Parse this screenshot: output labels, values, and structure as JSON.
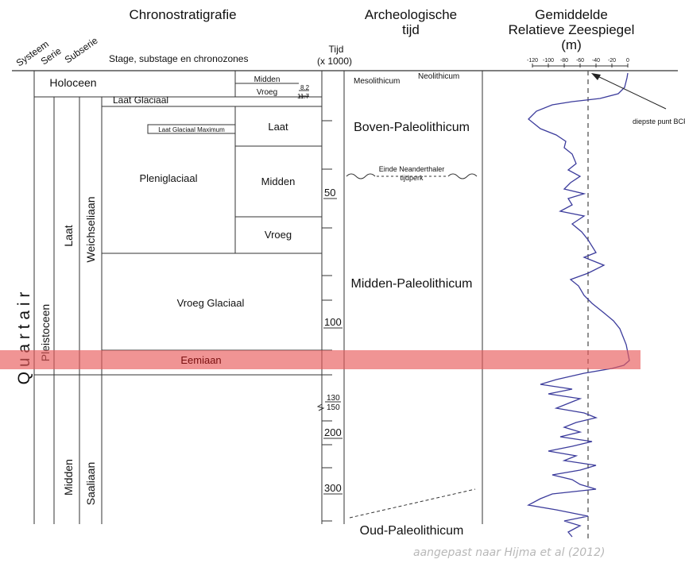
{
  "headers": {
    "chronostrat": "Chronostratigrafie",
    "arch_line1": "Archeologische",
    "arch_line2": "tijd",
    "sea_line1": "Gemiddelde",
    "sea_line2": "Relatieve Zeespiegel",
    "sea_line3": "(m)",
    "systeem": "Systeem",
    "serie": "Serie",
    "subserie": "Subserie",
    "stage": "Stage, substage en chronozones",
    "tijd_line1": "Tijd",
    "tijd_line2": "(x 1000)"
  },
  "strat": {
    "quartair": "Q u a r t a i r",
    "pleistoceen": "Pleistoceen",
    "holoceen": "Holoceen",
    "laat": "Laat",
    "midden": "Midden",
    "weichseliaan": "Weichseliaan",
    "saaliaan": "Saaliaan",
    "laat_glaciaal": "Laat Glaciaal",
    "lgm": "Laat Glaciaal Maximum",
    "pleniglaciaal": "Pleniglaciaal",
    "vroeg_glaciaal": "Vroeg Glaciaal",
    "eemiaan": "Eemiaan",
    "holo_midden": "Midden",
    "holo_vroeg": "Vroeg",
    "pleni_laat": "Laat",
    "pleni_midden": "Midden",
    "pleni_vroeg": "Vroeg"
  },
  "time_labels": {
    "t8_2": "8.2",
    "t11_7": "11.7",
    "t50": "50",
    "t100": "100",
    "t130": "130",
    "t150": "150",
    "t200": "200",
    "t300": "300"
  },
  "arch": {
    "mesolithicum": "Mesolithicum",
    "neolithicum": "Neolithicum",
    "boven": "Boven-Paleolithicum",
    "einde_line1": "Einde Neanderthaler",
    "einde_line2": "tijdperk",
    "midden": "Midden-Paleolithicum",
    "oud": "Oud-Paleolithicum"
  },
  "sea": {
    "ticks": [
      "-120",
      "-100",
      "-80",
      "-60",
      "-40",
      "-20",
      "0"
    ],
    "annotation": "diepste punt BCP",
    "curve_color": "#3c3c9c",
    "dashed_level": -50,
    "curve": [
      [
        0,
        92
      ],
      [
        -1,
        98
      ],
      [
        -4,
        110
      ],
      [
        -12,
        118
      ],
      [
        -35,
        124
      ],
      [
        -70,
        128
      ],
      [
        -95,
        132
      ],
      [
        -115,
        140
      ],
      [
        -125,
        150
      ],
      [
        -110,
        162
      ],
      [
        -90,
        170
      ],
      [
        -78,
        178
      ],
      [
        -80,
        186
      ],
      [
        -70,
        194
      ],
      [
        -65,
        206
      ],
      [
        -75,
        214
      ],
      [
        -60,
        222
      ],
      [
        -72,
        230
      ],
      [
        -80,
        238
      ],
      [
        -55,
        244
      ],
      [
        -75,
        250
      ],
      [
        -70,
        258
      ],
      [
        -85,
        266
      ],
      [
        -55,
        272
      ],
      [
        -70,
        282
      ],
      [
        -58,
        292
      ],
      [
        -50,
        302
      ],
      [
        -40,
        318
      ],
      [
        -55,
        324
      ],
      [
        -30,
        334
      ],
      [
        -50,
        344
      ],
      [
        -72,
        352
      ],
      [
        -62,
        360
      ],
      [
        -55,
        372
      ],
      [
        -45,
        382
      ],
      [
        -30,
        394
      ],
      [
        -18,
        404
      ],
      [
        -10,
        414
      ],
      [
        -6,
        424
      ],
      [
        -2,
        434
      ],
      [
        0,
        444
      ],
      [
        2,
        454
      ],
      [
        -5,
        460
      ],
      [
        -20,
        464
      ],
      [
        -55,
        470
      ],
      [
        -90,
        478
      ],
      [
        -110,
        484
      ],
      [
        -70,
        490
      ],
      [
        -100,
        496
      ],
      [
        -60,
        502
      ],
      [
        -75,
        508
      ],
      [
        -90,
        514
      ],
      [
        -55,
        520
      ],
      [
        -40,
        526
      ],
      [
        -65,
        532
      ],
      [
        -80,
        538
      ],
      [
        -60,
        544
      ],
      [
        -85,
        550
      ],
      [
        -45,
        556
      ],
      [
        -70,
        562
      ],
      [
        -100,
        568
      ],
      [
        -65,
        574
      ],
      [
        -80,
        580
      ],
      [
        -40,
        586
      ],
      [
        -60,
        592
      ],
      [
        -95,
        598
      ],
      [
        -70,
        604
      ],
      [
        -60,
        610
      ],
      [
        -40,
        616
      ],
      [
        -95,
        622
      ],
      [
        -110,
        628
      ],
      [
        -125,
        636
      ],
      [
        -90,
        642
      ],
      [
        -50,
        650
      ],
      [
        -80,
        656
      ],
      [
        -60,
        662
      ],
      [
        -75,
        670
      ],
      [
        -70,
        676
      ]
    ]
  },
  "credit": "aangepast naar Hijma et al (2012)"
}
